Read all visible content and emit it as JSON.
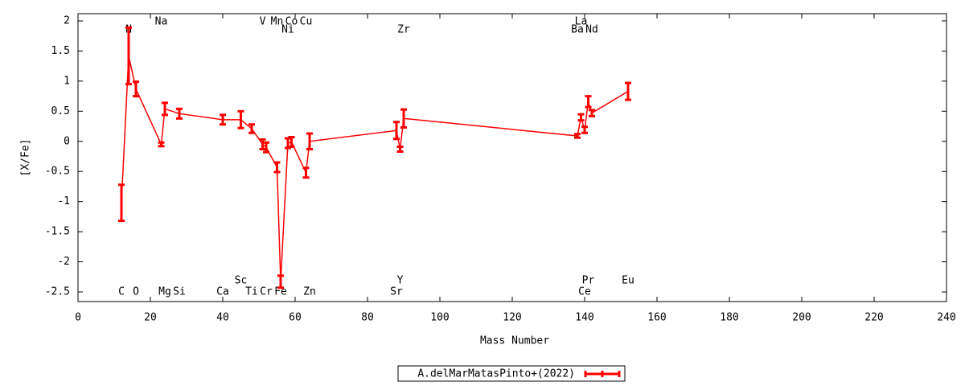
{
  "chart_data": {
    "type": "errorline",
    "xlabel": "Mass Number",
    "ylabel": "[X/Fe]",
    "x": [
      12,
      14,
      16,
      23,
      24,
      28,
      40,
      45,
      48,
      51,
      52,
      55,
      56,
      58,
      59,
      63,
      64,
      88,
      89,
      90,
      138,
      139,
      140,
      141,
      142,
      152
    ],
    "labels": [
      "C",
      "N",
      "O",
      "Na",
      "Mg",
      "Si",
      "Ca",
      "Sc",
      "Ti",
      "V",
      "Cr",
      "Mn",
      "Fe",
      "Ni",
      "Co",
      "Cu",
      "Zn",
      "Sr",
      "Y",
      "Zr",
      "Ba",
      "La",
      "Ce",
      "Pr",
      "Nd",
      "Eu"
    ],
    "series": [
      {
        "name": "A.delMarMatasPinto+(2022)",
        "color": "#ff0000",
        "values": [
          -1.02,
          1.42,
          0.87,
          -0.05,
          0.54,
          0.46,
          0.36,
          0.36,
          0.21,
          -0.05,
          -0.1,
          -0.43,
          -2.33,
          -0.03,
          -0.01,
          -0.52,
          0.0,
          0.18,
          -0.13,
          0.38,
          0.09,
          0.4,
          0.19,
          0.66,
          0.47,
          0.83
        ],
        "errors": [
          0.3,
          0.47,
          0.12,
          0.03,
          0.1,
          0.08,
          0.08,
          0.14,
          0.07,
          0.08,
          0.08,
          0.08,
          0.1,
          0.08,
          0.08,
          0.08,
          0.13,
          0.14,
          0.04,
          0.15,
          0.03,
          0.05,
          0.05,
          0.09,
          0.05,
          0.14
        ]
      }
    ],
    "xlim": [
      0,
      240
    ],
    "ylim": [
      -2.66,
      2.12
    ],
    "xticks": [
      0,
      20,
      40,
      60,
      80,
      100,
      120,
      140,
      160,
      180,
      200,
      220,
      240
    ],
    "yticks": [
      -2.5,
      -2,
      -1.5,
      -1,
      -0.5,
      0,
      0.5,
      1,
      1.5,
      2
    ]
  }
}
